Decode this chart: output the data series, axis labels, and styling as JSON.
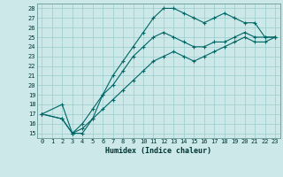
{
  "xlabel": "Humidex (Indice chaleur)",
  "bg_color": "#cce8e8",
  "line_color": "#006666",
  "grid_color": "#99cccc",
  "xlim": [
    -0.5,
    23.5
  ],
  "ylim": [
    14.5,
    28.5
  ],
  "xticks": [
    0,
    1,
    2,
    3,
    4,
    5,
    6,
    7,
    8,
    9,
    10,
    11,
    12,
    13,
    14,
    15,
    16,
    17,
    18,
    19,
    20,
    21,
    22,
    23
  ],
  "yticks": [
    15,
    16,
    17,
    18,
    19,
    20,
    21,
    22,
    23,
    24,
    25,
    26,
    27,
    28
  ],
  "line1": {
    "x": [
      0,
      2,
      3,
      4,
      5,
      6,
      7,
      8,
      9,
      10,
      11,
      12,
      13,
      14,
      15,
      16,
      17,
      18,
      19,
      20,
      21,
      22,
      23
    ],
    "y": [
      17.0,
      18.0,
      15.0,
      15.0,
      16.5,
      19.0,
      21.0,
      22.5,
      24.0,
      25.5,
      27.0,
      28.0,
      28.0,
      27.5,
      27.0,
      26.5,
      27.0,
      27.5,
      27.0,
      26.5,
      26.5,
      25.0,
      25.0
    ]
  },
  "line2": {
    "x": [
      0,
      2,
      3,
      4,
      5,
      6,
      7,
      8,
      9,
      10,
      11,
      12,
      13,
      14,
      15,
      16,
      17,
      18,
      19,
      20,
      21,
      22,
      23
    ],
    "y": [
      17.0,
      16.5,
      15.0,
      16.0,
      17.5,
      19.0,
      20.0,
      21.5,
      23.0,
      24.0,
      25.0,
      25.5,
      25.0,
      24.5,
      24.0,
      24.0,
      24.5,
      24.5,
      25.0,
      25.5,
      25.0,
      25.0,
      25.0
    ]
  },
  "line3": {
    "x": [
      0,
      2,
      3,
      4,
      5,
      6,
      7,
      8,
      9,
      10,
      11,
      12,
      13,
      14,
      15,
      16,
      17,
      18,
      19,
      20,
      21,
      22,
      23
    ],
    "y": [
      17.0,
      16.5,
      15.0,
      15.5,
      16.5,
      17.5,
      18.5,
      19.5,
      20.5,
      21.5,
      22.5,
      23.0,
      23.5,
      23.0,
      22.5,
      23.0,
      23.5,
      24.0,
      24.5,
      25.0,
      24.5,
      24.5,
      25.0
    ]
  }
}
